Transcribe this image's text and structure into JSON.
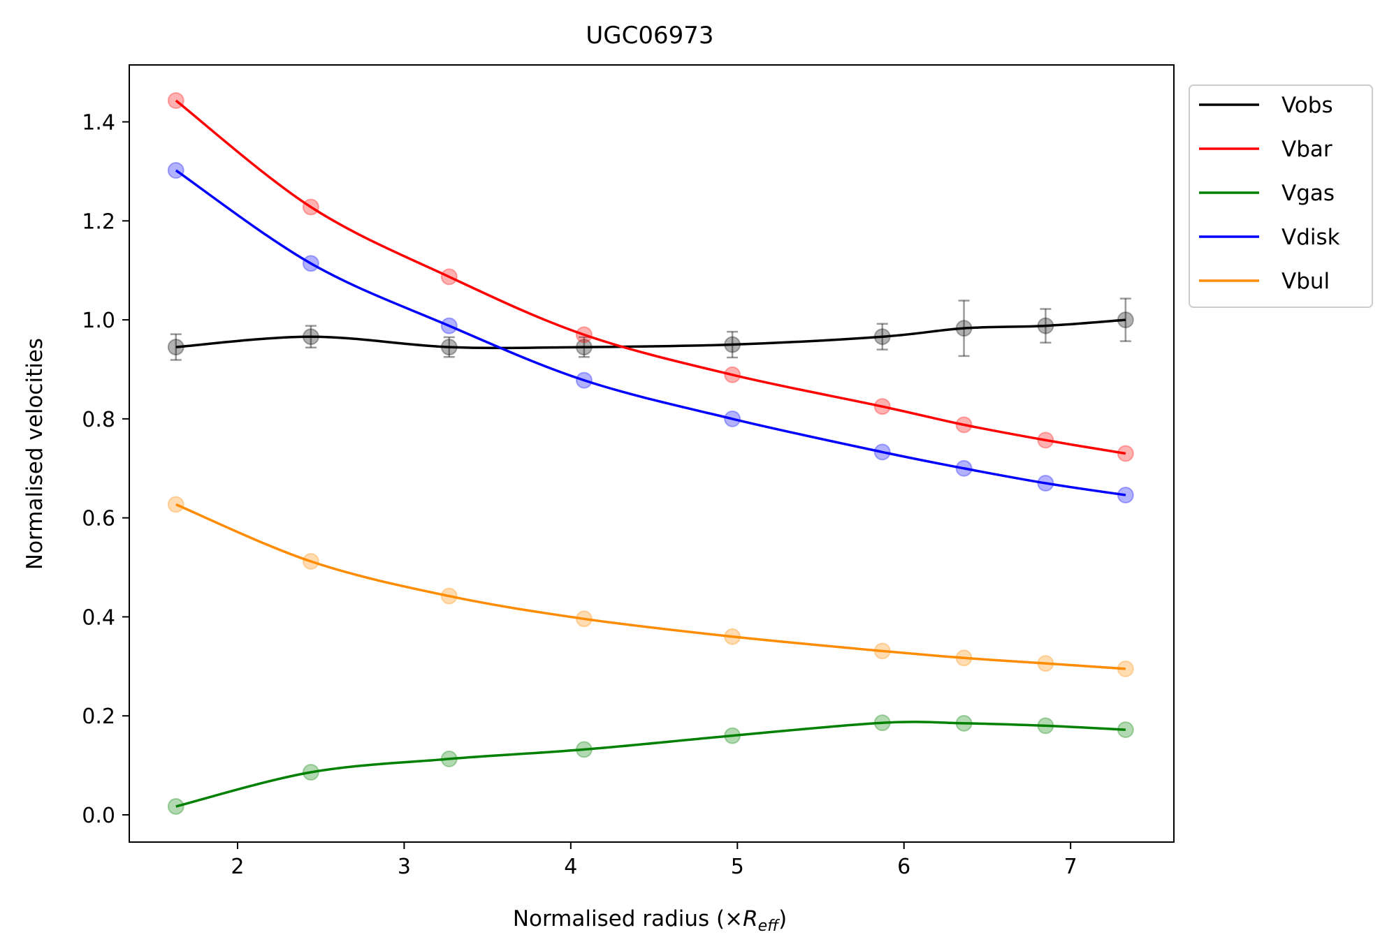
{
  "chart_data": {
    "type": "line",
    "title": "UGC06973",
    "xlabel_main": "Normalised radius (×",
    "xlabel_sym": "R",
    "xlabel_sub": "eff",
    "xlabel_end": ")",
    "ylabel": "Normalised velocities",
    "xlim": [
      1.35,
      7.62
    ],
    "ylim": [
      -0.055,
      1.515
    ],
    "xticks": [
      2,
      3,
      4,
      5,
      6,
      7
    ],
    "yticks": [
      0.0,
      0.2,
      0.4,
      0.6,
      0.8,
      1.0,
      1.2,
      1.4
    ],
    "x": [
      1.63,
      2.44,
      3.27,
      4.08,
      4.97,
      5.87,
      6.36,
      6.85,
      7.33
    ],
    "series": [
      {
        "name": "Vobs",
        "color": "#000000",
        "values": [
          0.945,
          0.966,
          0.945,
          0.945,
          0.95,
          0.966,
          0.983,
          0.988,
          1.0
        ],
        "errors": [
          0.026,
          0.022,
          0.02,
          0.02,
          0.026,
          0.026,
          0.056,
          0.034,
          0.043
        ]
      },
      {
        "name": "Vbar",
        "color": "#ff0000",
        "values": [
          1.443,
          1.228,
          1.087,
          0.97,
          0.889,
          0.825,
          0.788,
          0.757,
          0.73
        ]
      },
      {
        "name": "Vgas",
        "color": "#008000",
        "values": [
          0.017,
          0.086,
          0.113,
          0.132,
          0.16,
          0.186,
          0.185,
          0.18,
          0.172
        ]
      },
      {
        "name": "Vdisk",
        "color": "#0000ff",
        "values": [
          1.302,
          1.114,
          0.988,
          0.878,
          0.8,
          0.733,
          0.7,
          0.67,
          0.646
        ]
      },
      {
        "name": "Vbul",
        "color": "#ff8c00",
        "values": [
          0.627,
          0.512,
          0.442,
          0.396,
          0.36,
          0.331,
          0.317,
          0.306,
          0.295
        ]
      }
    ],
    "legend_position": "outside-top-right"
  }
}
